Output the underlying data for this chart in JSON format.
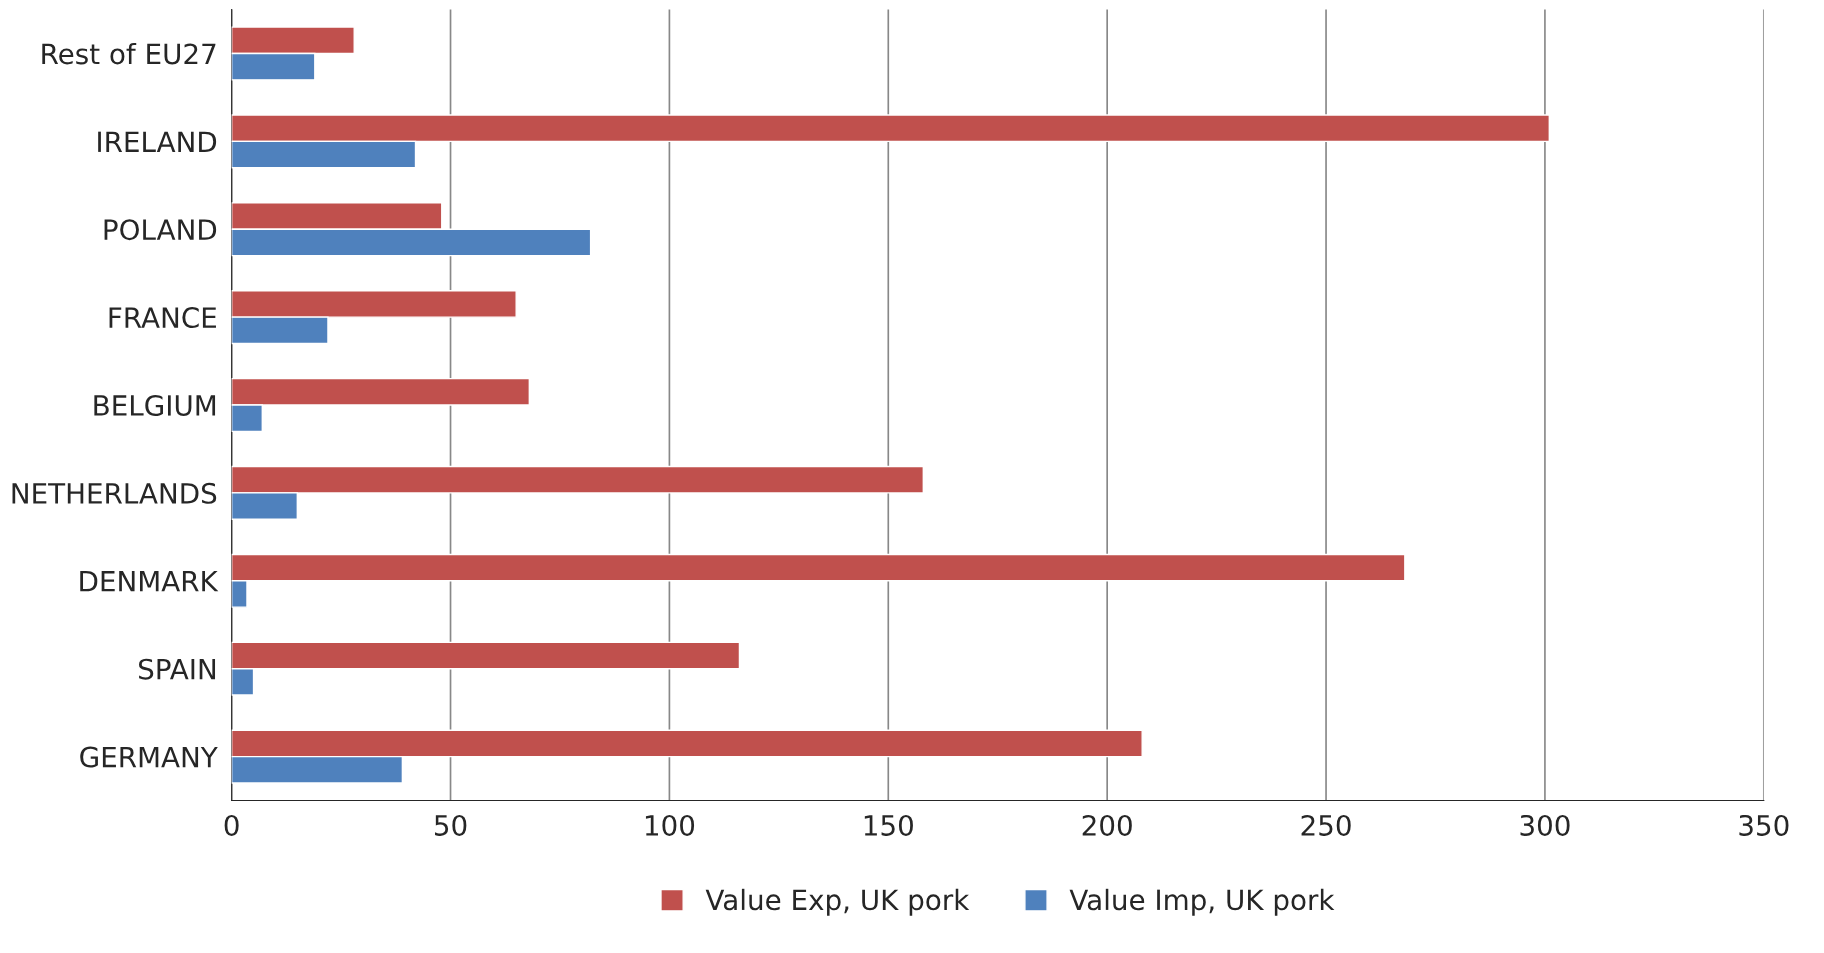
{
  "chart_data": {
    "type": "bar",
    "orientation": "horizontal",
    "categories": [
      "Rest of EU27",
      "IRELAND",
      "POLAND",
      "FRANCE",
      "BELGIUM",
      "NETHERLANDS",
      "DENMARK",
      "SPAIN",
      "GERMANY"
    ],
    "series": [
      {
        "name": "Value Exp, UK pork",
        "color": "#c0504d",
        "values": [
          28,
          301,
          48,
          65,
          68,
          158,
          268,
          116,
          208
        ]
      },
      {
        "name": "Value Imp, UK pork",
        "color": "#4f81bd",
        "values": [
          19,
          42,
          82,
          22,
          7,
          15,
          3.5,
          5,
          39
        ]
      }
    ],
    "xlim": [
      0,
      350
    ],
    "xticks": [
      0,
      50,
      100,
      150,
      200,
      250,
      300,
      350
    ],
    "grid": "x",
    "legend": "bottom"
  }
}
